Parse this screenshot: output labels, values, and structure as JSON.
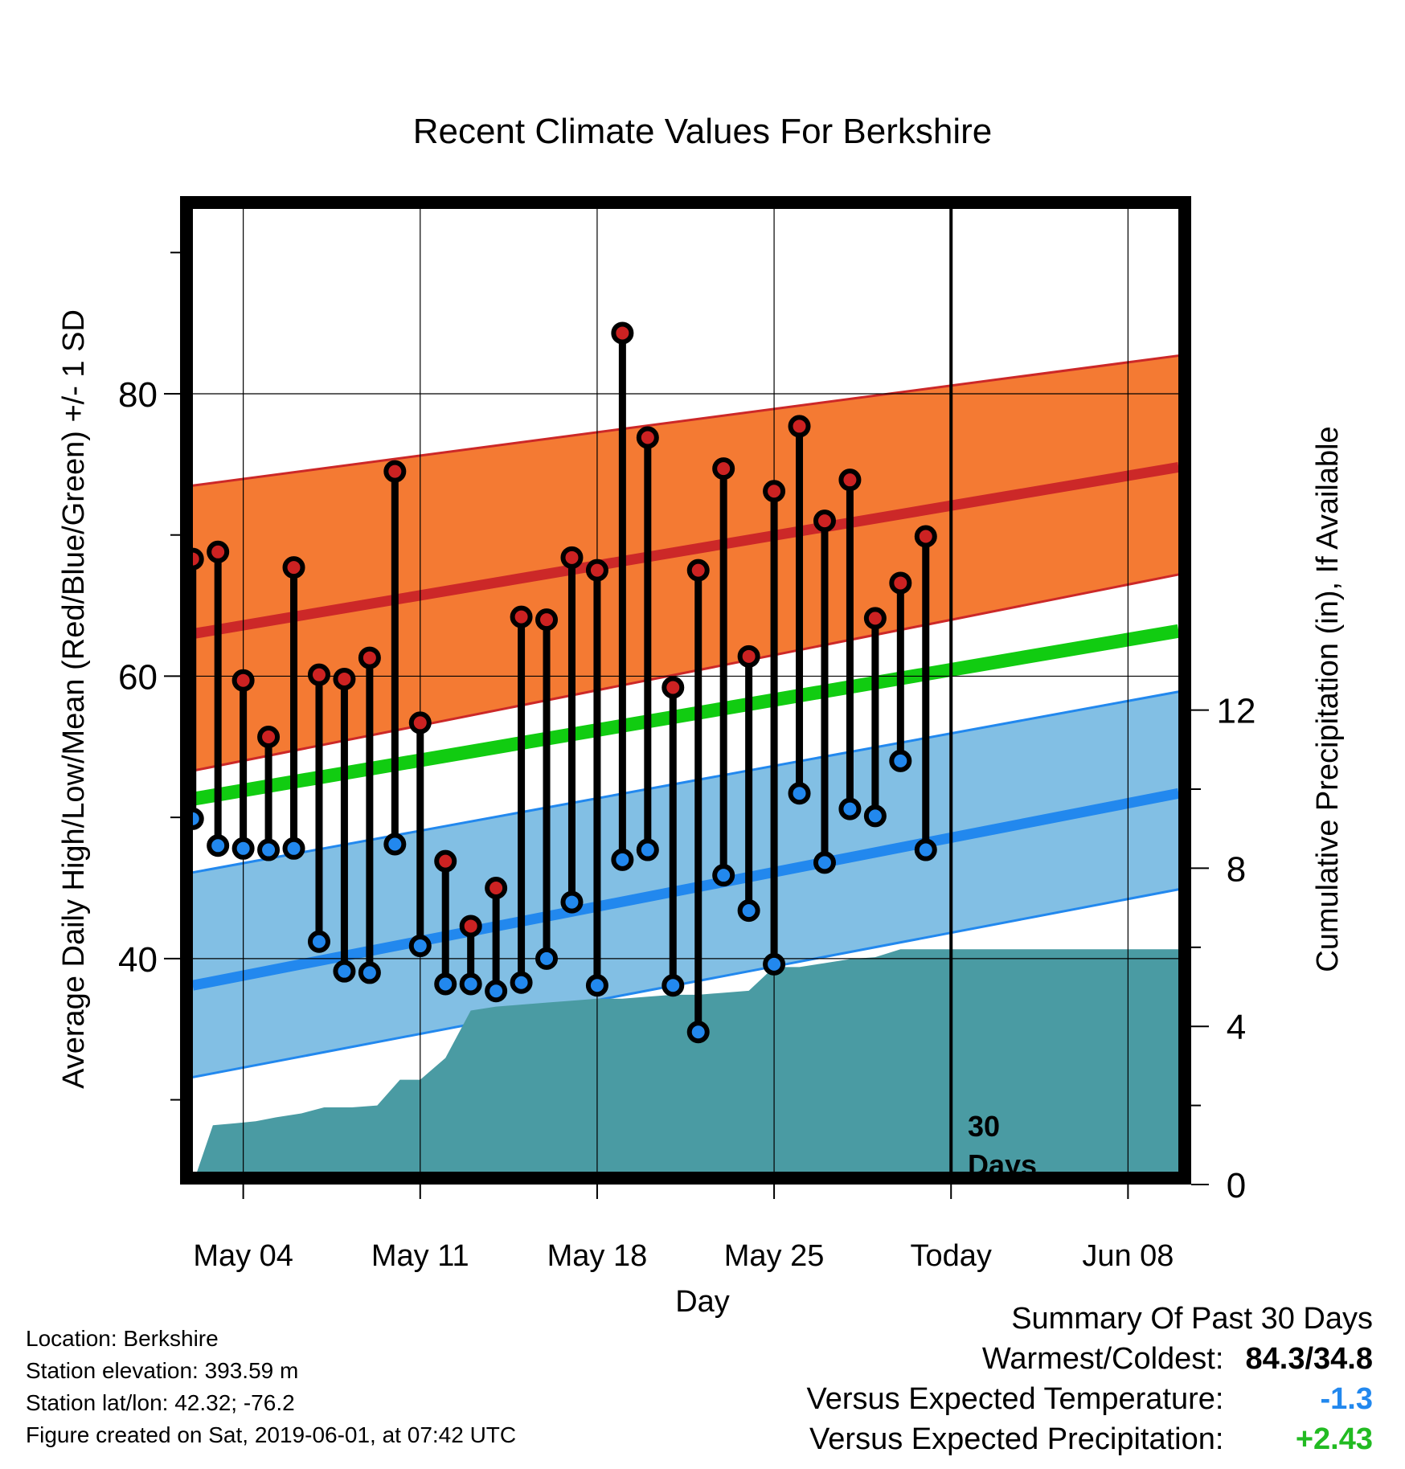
{
  "chart_data": {
    "type": "line",
    "title": "Recent Climate Values For Berkshire",
    "xlabel": "Day",
    "ylabel_left": "Average Daily High/Low/Mean (Red/Blue/Green) +/- 1 SD",
    "ylabel_right": "Cumulative Precipitation (in), If Available",
    "x_axis": {
      "start": "2019-05-01",
      "range_days": [
        0.5,
        40.5
      ],
      "tick_days": [
        3,
        10,
        17,
        24,
        31,
        38
      ],
      "tick_labels": [
        "May 04",
        "May 11",
        "May 18",
        "May 25",
        "Today",
        "Jun 08"
      ]
    },
    "ylim_left": [
      24,
      94
    ],
    "yticks_left": [
      40,
      60,
      80
    ],
    "ylim_right": [
      0,
      25
    ],
    "yticks_right": [
      0,
      4,
      8,
      12
    ],
    "grid": true,
    "today_marker": {
      "day": 31,
      "label_line1": "30",
      "label_line2": "Days"
    },
    "normals": {
      "days": [
        1,
        40
      ],
      "high_mean": [
        63,
        74.8
      ],
      "high_upper": [
        73.5,
        82.7
      ],
      "high_lower": [
        53.3,
        67.2
      ],
      "mean": [
        51.3,
        63.2
      ],
      "low_mean": [
        38.1,
        51.7
      ],
      "low_upper": [
        46.1,
        58.9
      ],
      "low_lower": [
        31.6,
        44.9
      ]
    },
    "series": [
      {
        "name": "High",
        "color": "#cc2222",
        "x": [
          1,
          2,
          3,
          4,
          5,
          6,
          7,
          8,
          9,
          10,
          11,
          12,
          13,
          14,
          15,
          16,
          17,
          18,
          19,
          20,
          21,
          22,
          23,
          24,
          25,
          26,
          27,
          28,
          29,
          30,
          31
        ],
        "values": [
          68.3,
          68.8,
          59.7,
          55.7,
          67.7,
          60.1,
          59.8,
          61.3,
          74.5,
          56.7,
          46.9,
          42.3,
          45,
          64.2,
          64,
          68.4,
          67.5,
          84.3,
          76.9,
          59.2,
          67.5,
          74.7,
          61.4,
          73.1,
          77.7,
          71,
          73.9,
          64.1,
          66.6,
          69.9,
          null
        ]
      },
      {
        "name": "Low",
        "color": "#2288ee",
        "x": [
          1,
          2,
          3,
          4,
          5,
          6,
          7,
          8,
          9,
          10,
          11,
          12,
          13,
          14,
          15,
          16,
          17,
          18,
          19,
          20,
          21,
          22,
          23,
          24,
          25,
          26,
          27,
          28,
          29,
          30,
          31
        ],
        "values": [
          49.9,
          48,
          47.8,
          47.7,
          47.8,
          41.2,
          39.1,
          39,
          48.1,
          40.9,
          38.2,
          38.2,
          37.7,
          38.3,
          40,
          44,
          38.1,
          47,
          47.7,
          38.1,
          34.8,
          45.9,
          43.4,
          39.6,
          51.7,
          46.8,
          50.6,
          50.1,
          54,
          47.7,
          null
        ]
      }
    ],
    "precipitation": {
      "x": [
        1,
        1.8,
        2.7,
        3.5,
        4.3,
        5.3,
        6.2,
        7.3,
        8.3,
        9.2,
        10,
        11,
        12,
        13,
        14,
        15,
        16,
        17,
        18,
        19,
        20,
        21,
        22,
        23,
        24,
        25,
        26,
        27,
        28,
        29,
        30,
        31,
        40
      ],
      "values": [
        0,
        1.5,
        1.55,
        1.6,
        1.7,
        1.8,
        1.95,
        1.95,
        2,
        2.65,
        2.65,
        3.2,
        4.4,
        4.5,
        4.55,
        4.6,
        4.65,
        4.7,
        4.7,
        4.75,
        4.8,
        4.8,
        4.85,
        4.9,
        5.5,
        5.5,
        5.6,
        5.7,
        5.75,
        5.95,
        5.95,
        5.95,
        5.95
      ]
    }
  },
  "info": {
    "location": "Location: Berkshire",
    "elevation": "Station elevation: 393.59 m",
    "latlon": "Station lat/lon: 42.32; -76.2",
    "created": "Figure created on Sat, 2019-06-01, at 07:42 UTC"
  },
  "summary": {
    "heading": "Summary Of Past 30 Days",
    "warmest_label": "Warmest/Coldest:",
    "warmest_value": "84.3/34.8",
    "temp_label": "Versus Expected Temperature:",
    "temp_value": "-1.3",
    "temp_color": "#2288ee",
    "precip_label": "Versus Expected Precipitation:",
    "precip_value": "+2.43",
    "precip_color": "#22bb22"
  },
  "colors": {
    "high_band": "#f47a33",
    "high_line": "#cc2828",
    "mean_line": "#11cc11",
    "low_band": "#82bfe4",
    "low_line": "#2288ee",
    "precip_fill": "#4a9ba3"
  }
}
